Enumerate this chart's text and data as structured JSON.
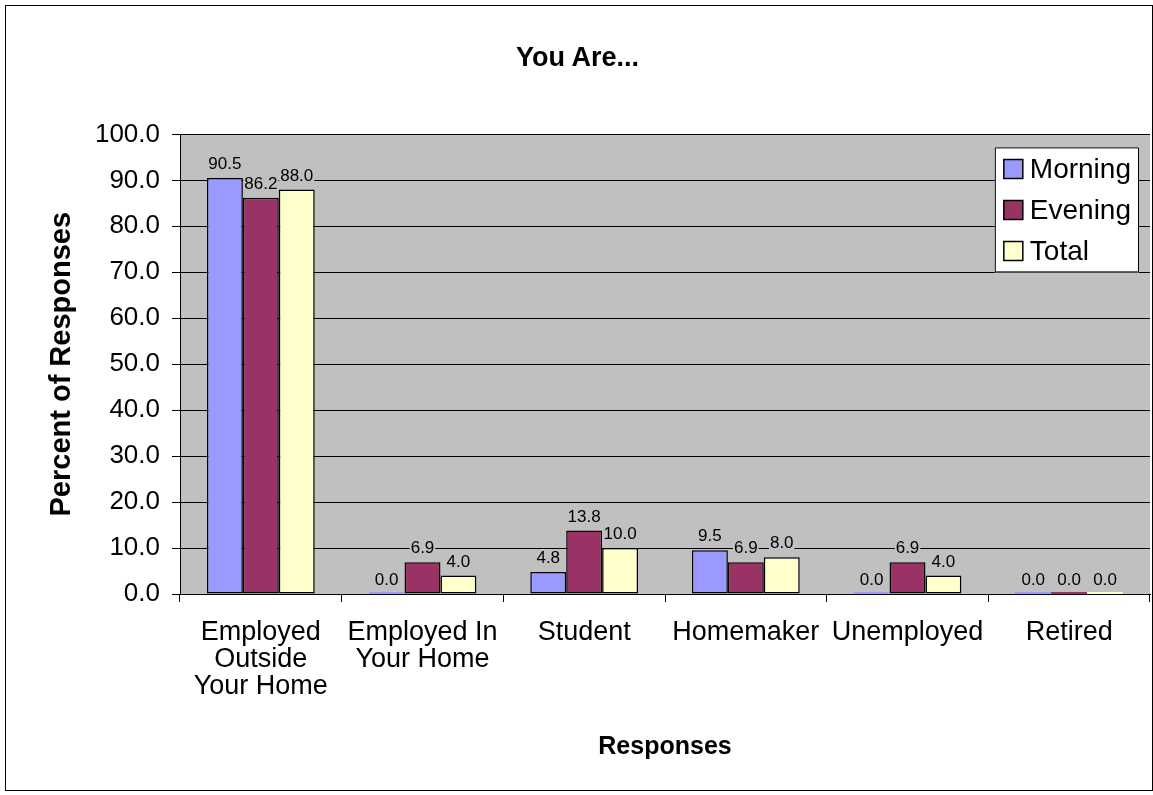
{
  "chart_data": {
    "type": "bar",
    "title": "You Are...",
    "xlabel": "Responses",
    "ylabel": "Percent of Responses",
    "categories": [
      "Employed Outside Your Home",
      "Employed In Your Home",
      "Student",
      "Homemaker",
      "Unemployed",
      "Retired"
    ],
    "series": [
      {
        "name": "Morning",
        "color": "#9999ff",
        "values": [
          90.5,
          0,
          4.8,
          9.5,
          0,
          0
        ],
        "value_labels": [
          "90.5",
          "0.0",
          "4.8",
          "9.5",
          "0.0",
          "0.0"
        ]
      },
      {
        "name": "Evening",
        "color": "#993366",
        "values": [
          86.2,
          6.9,
          13.8,
          6.9,
          6.9,
          0
        ],
        "value_labels": [
          "86.2",
          "6.9",
          "13.8",
          "6.9",
          "6.9",
          "0.0"
        ]
      },
      {
        "name": "Total",
        "color": "#ffffcc",
        "values": [
          88,
          4,
          10,
          8,
          4,
          0
        ],
        "value_labels": [
          "88.0",
          "4.0",
          "10.0",
          "8.0",
          "4.0",
          "0.0"
        ]
      }
    ],
    "ylim": [
      0,
      100
    ],
    "yticks": [
      {
        "value": 0,
        "label": "0.0"
      },
      {
        "value": 10,
        "label": "10.0"
      },
      {
        "value": 20,
        "label": "20.0"
      },
      {
        "value": 30,
        "label": "30.0"
      },
      {
        "value": 40,
        "label": "40.0"
      },
      {
        "value": 50,
        "label": "50.0"
      },
      {
        "value": 60,
        "label": "60.0"
      },
      {
        "value": 70,
        "label": "70.0"
      },
      {
        "value": 80,
        "label": "80.0"
      },
      {
        "value": 90,
        "label": "90.0"
      },
      {
        "value": 100,
        "label": "100.0"
      }
    ],
    "grid": "y",
    "legend": "top right"
  }
}
